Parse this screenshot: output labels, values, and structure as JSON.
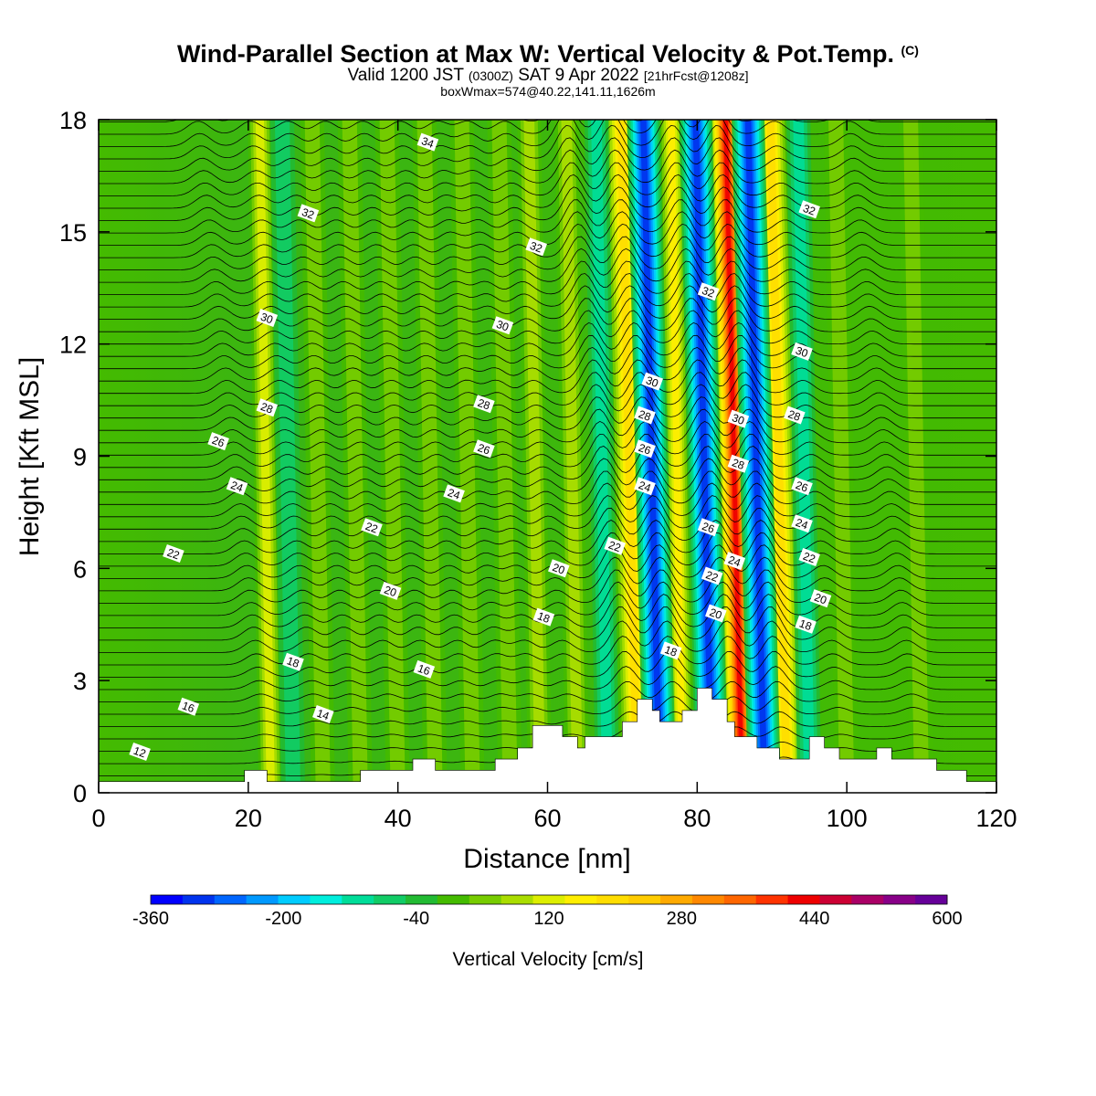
{
  "title": {
    "main": "Wind-Parallel Section at Max W: Vertical Velocity & Pot.Temp.",
    "copyright": "(C)",
    "valid_prefix": "Valid 1200 JST",
    "valid_utc": "(0300Z)",
    "valid_date": "SAT 9 Apr 2022",
    "forecast": "[21hrFcst@1208z]",
    "box_info": "boxWmax=574@40.22,141.11,1626m"
  },
  "chart_data": {
    "type": "heatmap",
    "xlabel": "Distance [nm]",
    "ylabel": "Height [Kft MSL]",
    "xlim": [
      0,
      120
    ],
    "ylim": [
      0,
      18
    ],
    "xticks": [
      0,
      20,
      40,
      60,
      80,
      100,
      120
    ],
    "yticks": [
      0,
      3,
      6,
      9,
      12,
      15,
      18
    ],
    "shaded_field": "Vertical Velocity",
    "shaded_field_units": "cm/s",
    "colorbar": {
      "label": "Vertical Velocity [cm/s]",
      "tick_labels": [
        "-360",
        "-200",
        "-40",
        "120",
        "280",
        "440",
        "600"
      ],
      "levels": [
        -360,
        -320,
        -280,
        -240,
        -200,
        -160,
        -120,
        -80,
        -40,
        0,
        40,
        80,
        120,
        160,
        200,
        240,
        280,
        320,
        360,
        400,
        440,
        480,
        520,
        560,
        600
      ],
      "colors": [
        "#0000ff",
        "#0033ee",
        "#0066ff",
        "#0099ff",
        "#00ccff",
        "#00eedd",
        "#00dd99",
        "#11cc66",
        "#22bb33",
        "#44bb00",
        "#77cc00",
        "#aadd00",
        "#ddee00",
        "#ffee00",
        "#ffdd00",
        "#ffcc00",
        "#ffaa00",
        "#ff8800",
        "#ff6600",
        "#ff3300",
        "#ee0000",
        "#cc0033",
        "#aa0066",
        "#880088",
        "#660099"
      ]
    },
    "updraft_bands": [
      {
        "x": 23,
        "w_max": 150
      },
      {
        "x": 30,
        "w_max": 80
      },
      {
        "x": 35,
        "w_max": 80
      },
      {
        "x": 40,
        "w_max": 90
      },
      {
        "x": 45,
        "w_max": 80
      },
      {
        "x": 50,
        "w_max": 90
      },
      {
        "x": 55,
        "w_max": 90
      },
      {
        "x": 59,
        "w_max": 100
      },
      {
        "x": 64,
        "w_max": 130
      },
      {
        "x": 72,
        "w_max": 250
      },
      {
        "x": 78,
        "w_max": 180
      },
      {
        "x": 86,
        "w_max": 480
      },
      {
        "x": 92,
        "w_max": 250
      },
      {
        "x": 100,
        "w_max": 90
      },
      {
        "x": 110,
        "w_max": 60
      }
    ],
    "downdraft_bands": [
      {
        "x": 26,
        "w_min": -60
      },
      {
        "x": 68,
        "w_min": -120
      },
      {
        "x": 75,
        "w_min": -330
      },
      {
        "x": 82,
        "w_min": -320
      },
      {
        "x": 89,
        "w_min": -330
      },
      {
        "x": 95,
        "w_min": -120
      }
    ],
    "contour_field": "Potential Temperature",
    "contour_labels": [
      {
        "v": "12",
        "x": 5.5,
        "y": 1.1
      },
      {
        "v": "14",
        "x": 30,
        "y": 2.1
      },
      {
        "v": "16",
        "x": 12,
        "y": 2.3
      },
      {
        "v": "16",
        "x": 43.5,
        "y": 3.3
      },
      {
        "v": "18",
        "x": 26,
        "y": 3.5
      },
      {
        "v": "18",
        "x": 59.5,
        "y": 4.7
      },
      {
        "v": "18",
        "x": 76.5,
        "y": 3.8
      },
      {
        "v": "18",
        "x": 94.5,
        "y": 4.5
      },
      {
        "v": "20",
        "x": 39,
        "y": 5.4
      },
      {
        "v": "20",
        "x": 61.5,
        "y": 6.0
      },
      {
        "v": "20",
        "x": 96.5,
        "y": 5.2
      },
      {
        "v": "20",
        "x": 82.5,
        "y": 4.8
      },
      {
        "v": "22",
        "x": 10,
        "y": 6.4
      },
      {
        "v": "22",
        "x": 36.5,
        "y": 7.1
      },
      {
        "v": "22",
        "x": 69,
        "y": 6.6
      },
      {
        "v": "22",
        "x": 82,
        "y": 5.8
      },
      {
        "v": "22",
        "x": 95,
        "y": 6.3
      },
      {
        "v": "24",
        "x": 18.5,
        "y": 8.2
      },
      {
        "v": "24",
        "x": 47.5,
        "y": 8.0
      },
      {
        "v": "24",
        "x": 73,
        "y": 8.2
      },
      {
        "v": "24",
        "x": 85,
        "y": 6.2
      },
      {
        "v": "24",
        "x": 94,
        "y": 7.2
      },
      {
        "v": "26",
        "x": 16,
        "y": 9.4
      },
      {
        "v": "26",
        "x": 51.5,
        "y": 9.2
      },
      {
        "v": "26",
        "x": 73,
        "y": 9.2
      },
      {
        "v": "26",
        "x": 81.5,
        "y": 7.1
      },
      {
        "v": "26",
        "x": 94,
        "y": 8.2
      },
      {
        "v": "28",
        "x": 22.5,
        "y": 10.3
      },
      {
        "v": "28",
        "x": 51.5,
        "y": 10.4
      },
      {
        "v": "28",
        "x": 73,
        "y": 10.1
      },
      {
        "v": "28",
        "x": 85.5,
        "y": 8.8
      },
      {
        "v": "28",
        "x": 93,
        "y": 10.1
      },
      {
        "v": "30",
        "x": 22.5,
        "y": 12.7
      },
      {
        "v": "30",
        "x": 54,
        "y": 12.5
      },
      {
        "v": "30",
        "x": 74,
        "y": 11.0
      },
      {
        "v": "30",
        "x": 85.5,
        "y": 10.0
      },
      {
        "v": "30",
        "x": 94,
        "y": 11.8
      },
      {
        "v": "32",
        "x": 28,
        "y": 15.5
      },
      {
        "v": "32",
        "x": 58.5,
        "y": 14.6
      },
      {
        "v": "32",
        "x": 81.5,
        "y": 13.4
      },
      {
        "v": "32",
        "x": 95,
        "y": 15.6
      },
      {
        "v": "34",
        "x": 44,
        "y": 17.4
      }
    ],
    "terrain_nm_kft": [
      [
        0,
        0.3
      ],
      [
        19.5,
        0.3
      ],
      [
        19.5,
        0.6
      ],
      [
        22.5,
        0.6
      ],
      [
        22.5,
        0.3
      ],
      [
        35,
        0.3
      ],
      [
        35,
        0.6
      ],
      [
        42,
        0.6
      ],
      [
        42,
        0.9
      ],
      [
        45,
        0.9
      ],
      [
        45,
        0.6
      ],
      [
        53,
        0.6
      ],
      [
        53,
        0.9
      ],
      [
        56,
        0.9
      ],
      [
        56,
        1.2
      ],
      [
        58,
        1.2
      ],
      [
        58,
        1.8
      ],
      [
        62,
        1.8
      ],
      [
        62,
        1.5
      ],
      [
        64,
        1.5
      ],
      [
        64,
        1.2
      ],
      [
        65,
        1.2
      ],
      [
        65,
        1.5
      ],
      [
        70,
        1.5
      ],
      [
        70,
        1.9
      ],
      [
        72,
        1.9
      ],
      [
        72,
        2.5
      ],
      [
        74,
        2.5
      ],
      [
        74,
        2.2
      ],
      [
        75,
        2.2
      ],
      [
        75,
        1.9
      ],
      [
        78,
        1.9
      ],
      [
        78,
        2.2
      ],
      [
        80,
        2.2
      ],
      [
        80,
        2.8
      ],
      [
        82,
        2.8
      ],
      [
        82,
        2.5
      ],
      [
        84,
        2.5
      ],
      [
        84,
        1.9
      ],
      [
        85,
        1.9
      ],
      [
        85,
        1.5
      ],
      [
        88,
        1.5
      ],
      [
        88,
        1.2
      ],
      [
        91,
        1.2
      ],
      [
        91,
        0.9
      ],
      [
        95,
        0.9
      ],
      [
        95,
        1.5
      ],
      [
        97,
        1.5
      ],
      [
        97,
        1.2
      ],
      [
        99,
        1.2
      ],
      [
        99,
        0.9
      ],
      [
        104,
        0.9
      ],
      [
        104,
        1.2
      ],
      [
        106,
        1.2
      ],
      [
        106,
        0.9
      ],
      [
        112,
        0.9
      ],
      [
        112,
        0.6
      ],
      [
        116,
        0.6
      ],
      [
        116,
        0.3
      ],
      [
        120,
        0.3
      ],
      [
        120,
        0
      ],
      [
        0,
        0
      ]
    ]
  }
}
